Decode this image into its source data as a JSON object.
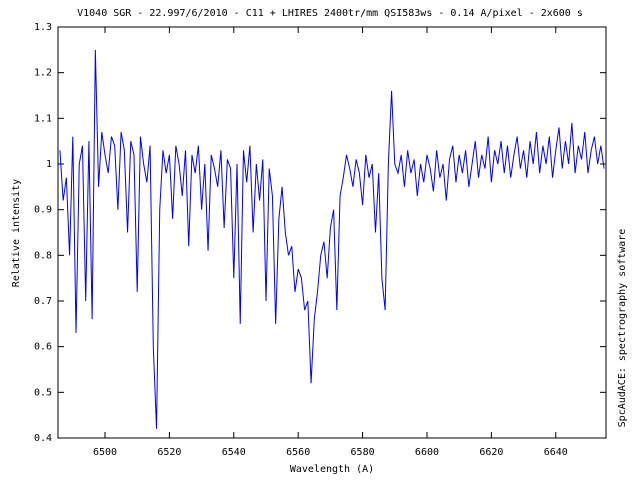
{
  "chart_data": {
    "type": "line",
    "title": "V1040 SGR - 22.997/6/2010 - C11 + LHIRES 2400tr/mm QSI583ws - 0.14 A/pixel - 2x600 s",
    "x_label": "Wavelength (A)",
    "y_label": "Relative intensity",
    "side_note": "SpcAudACE: spectrography software",
    "color": "#0000ff",
    "x": [
      6486,
      6487,
      6488,
      6489,
      6490,
      6491,
      6492,
      6493,
      6494,
      6495,
      6496,
      6497,
      6498,
      6499,
      6500,
      6501,
      6502,
      6503,
      6504,
      6505,
      6506,
      6507,
      6508,
      6509,
      6510,
      6511,
      6512,
      6513,
      6514,
      6515,
      6516,
      6517,
      6518,
      6519,
      6520,
      6521,
      6522,
      6523,
      6524,
      6525,
      6526,
      6527,
      6528,
      6529,
      6530,
      6531,
      6532,
      6533,
      6534,
      6535,
      6536,
      6537,
      6538,
      6539,
      6540,
      6541,
      6542,
      6543,
      6544,
      6545,
      6546,
      6547,
      6548,
      6549,
      6550,
      6551,
      6552,
      6553,
      6554,
      6555,
      6556,
      6557,
      6558,
      6559,
      6560,
      6561,
      6562,
      6563,
      6564,
      6565,
      6566,
      6567,
      6568,
      6569,
      6570,
      6571,
      6572,
      6573,
      6574,
      6575,
      6576,
      6577,
      6578,
      6579,
      6580,
      6581,
      6582,
      6583,
      6584,
      6585,
      6586,
      6587,
      6588,
      6589,
      6590,
      6591,
      6592,
      6593,
      6594,
      6595,
      6596,
      6597,
      6598,
      6599,
      6600,
      6601,
      6602,
      6603,
      6604,
      6605,
      6606,
      6607,
      6608,
      6609,
      6610,
      6611,
      6612,
      6613,
      6614,
      6615,
      6616,
      6617,
      6618,
      6619,
      6620,
      6621,
      6622,
      6623,
      6624,
      6625,
      6626,
      6627,
      6628,
      6629,
      6630,
      6631,
      6632,
      6633,
      6634,
      6635,
      6636,
      6637,
      6638,
      6639,
      6640,
      6641,
      6642,
      6643,
      6644,
      6645,
      6646,
      6647,
      6648,
      6649,
      6650,
      6651,
      6652,
      6653,
      6654,
      6655
    ],
    "values": [
      1.03,
      0.92,
      0.97,
      0.8,
      1.06,
      0.63,
      1.0,
      1.04,
      0.7,
      1.05,
      0.66,
      1.25,
      0.95,
      1.07,
      1.02,
      0.98,
      1.06,
      1.04,
      0.9,
      1.07,
      1.03,
      0.85,
      1.05,
      1.02,
      0.72,
      1.06,
      1.0,
      0.96,
      1.04,
      0.6,
      0.42,
      0.9,
      1.03,
      0.98,
      1.02,
      0.88,
      1.04,
      1.0,
      0.93,
      1.03,
      0.82,
      1.02,
      0.98,
      1.04,
      0.9,
      1.0,
      0.81,
      1.02,
      0.99,
      0.95,
      1.03,
      0.86,
      1.01,
      0.99,
      0.75,
      1.0,
      0.65,
      1.03,
      0.96,
      1.04,
      0.85,
      1.0,
      0.92,
      1.01,
      0.7,
      0.99,
      0.93,
      0.65,
      0.88,
      0.95,
      0.85,
      0.8,
      0.82,
      0.72,
      0.77,
      0.75,
      0.68,
      0.7,
      0.52,
      0.66,
      0.72,
      0.8,
      0.83,
      0.75,
      0.86,
      0.9,
      0.68,
      0.93,
      0.97,
      1.02,
      0.99,
      0.95,
      1.01,
      0.98,
      0.91,
      1.02,
      0.97,
      1.0,
      0.85,
      0.98,
      0.75,
      0.68,
      1.0,
      1.16,
      1.0,
      0.98,
      1.02,
      0.95,
      1.03,
      0.98,
      1.01,
      0.93,
      1.0,
      0.96,
      1.02,
      0.99,
      0.94,
      1.03,
      0.97,
      1.0,
      0.92,
      1.01,
      1.04,
      0.96,
      1.02,
      0.98,
      1.03,
      0.95,
      1.0,
      1.05,
      0.97,
      1.02,
      0.99,
      1.06,
      0.96,
      1.03,
      1.0,
      1.05,
      0.98,
      1.04,
      0.97,
      1.02,
      1.06,
      0.99,
      1.03,
      0.97,
      1.05,
      1.0,
      1.07,
      0.98,
      1.04,
      1.0,
      1.06,
      0.97,
      1.03,
      1.08,
      0.99,
      1.05,
      1.0,
      1.09,
      0.98,
      1.04,
      1.01,
      1.07,
      0.98,
      1.03,
      1.06,
      1.0,
      1.04,
      0.99
    ],
    "xlim": [
      6485.4,
      6655.6
    ],
    "ylim": [
      0.4,
      1.3
    ],
    "xticks": [
      6500,
      6520,
      6540,
      6560,
      6580,
      6600,
      6620,
      6640
    ],
    "yticks": [
      0.4,
      0.5,
      0.6,
      0.7,
      0.8,
      0.9,
      1,
      1.1,
      1.2,
      1.3
    ]
  }
}
